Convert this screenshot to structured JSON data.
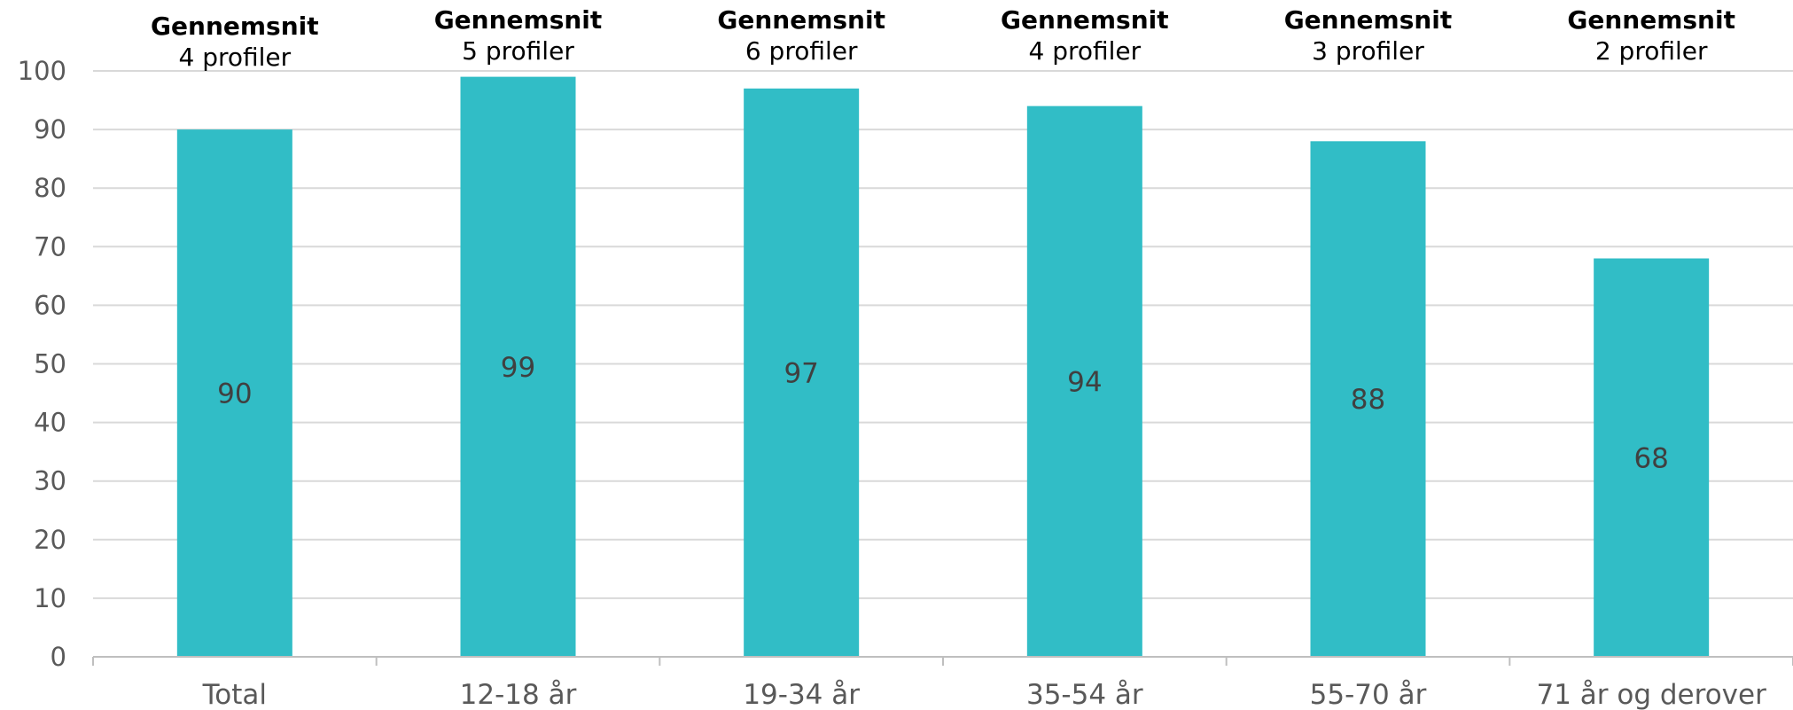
{
  "chart_data": {
    "type": "bar",
    "categories": [
      "Total",
      "12-18 år",
      "19-34 år",
      "35-54 år",
      "55-70 år",
      "71 år og derover"
    ],
    "values": [
      90,
      99,
      97,
      94,
      88,
      68
    ],
    "data_labels": [
      "90",
      "99",
      "97",
      "94",
      "88",
      "68"
    ],
    "annotations": [
      {
        "title": "Gennemsnit",
        "subtitle": "4 profiler"
      },
      {
        "title": "Gennemsnit",
        "subtitle": "5 profiler"
      },
      {
        "title": "Gennemsnit",
        "subtitle": "6 profiler"
      },
      {
        "title": "Gennemsnit",
        "subtitle": "4 profiler"
      },
      {
        "title": "Gennemsnit",
        "subtitle": "3 profiler"
      },
      {
        "title": "Gennemsnit",
        "subtitle": "2 profiler"
      }
    ],
    "yticks": [
      "0",
      "10",
      "20",
      "30",
      "40",
      "50",
      "60",
      "70",
      "80",
      "90",
      "100"
    ],
    "ylim": [
      0,
      100
    ],
    "grid": true,
    "legend": "none",
    "title": "",
    "xlabel": "",
    "ylabel": "",
    "colors": {
      "bar": "#31BDC6",
      "grid": "#D9D9D9",
      "axis": "#BFBFBF"
    }
  }
}
